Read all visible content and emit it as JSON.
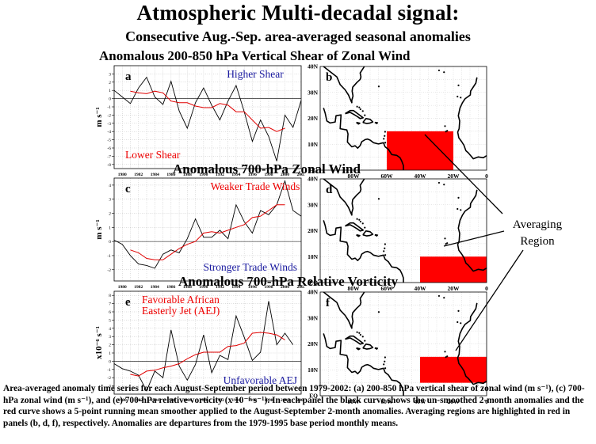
{
  "header": {
    "title": "Atmospheric Multi-decadal signal:",
    "subtitle": "Consecutive Aug.-Sep. area-averaged seasonal anomalies"
  },
  "averaging_label": [
    "Averaging",
    "Region"
  ],
  "caption": "Area-averaged anomaly time series for each August-September period between 1979-2002: (a) 200-850 hPa vertical shear of zonal wind (m s⁻¹), (c) 700-hPa zonal wind (m s⁻¹), and (e) 700-hPa relative vorticity (x 10⁻⁶ s⁻¹). In each panel the black curve shows the un-smoothed 2-month anomalies and the red curve shows a 5-point running mean smoother applied to the August-September 2-month anomalies. Averaging regions are highlighted in red in panels (b, d, f), respectively. Anomalies are departures from the 1979-1995 base period monthly means.",
  "colors": {
    "raw": "#000000",
    "smooth": "#e00000",
    "region": "#ff0000",
    "upper_note": "#ee0000",
    "lower_note": "#1a1aa0"
  },
  "map": {
    "lat_labels": [
      "40N",
      "30N",
      "20N",
      "10N",
      "EQ"
    ],
    "lon_labels": [
      "80W",
      "60W",
      "40W",
      "20W",
      "0"
    ]
  },
  "chart_data": [
    {
      "type": "line",
      "panel": "a",
      "title": "Anomalous 200-850 hPa Vertical Shear of Zonal Wind",
      "ylabel": "m s⁻¹",
      "upper_note": "Higher Shear",
      "upper_note_color": "#1a1aa0",
      "lower_note": "Lower Shear",
      "lower_note_color": "#ee0000",
      "ylim": [
        -8.5,
        4
      ],
      "yticks": [
        -8,
        -7,
        -6,
        -5,
        -4,
        -3,
        -2,
        -1,
        0,
        1,
        2,
        3
      ],
      "x": [
        1979,
        1980,
        1981,
        1982,
        1983,
        1984,
        1985,
        1986,
        1987,
        1988,
        1989,
        1990,
        1991,
        1992,
        1993,
        1994,
        1995,
        1996,
        1997,
        1998,
        1999,
        2000,
        2001,
        2002
      ],
      "xtick_labels": [
        "1980",
        "1982",
        "1984",
        "1986",
        "1988",
        "1990",
        "1992",
        "1994",
        "1996",
        "1998",
        "2000",
        "2002"
      ],
      "series": [
        {
          "values": [
            1.0,
            0.2,
            -0.6,
            1.3,
            2.6,
            0.2,
            -0.7,
            2.1,
            -1.5,
            -3.6,
            -0.5,
            1.3,
            -0.8,
            -2.6,
            -0.3,
            1.6,
            -1.6,
            -5.2,
            -2.6,
            -4.6,
            -7.6,
            -2.0,
            -3.5,
            -0.2
          ]
        },
        {
          "values": [
            null,
            null,
            0.9,
            0.7,
            0.6,
            0.9,
            0.7,
            -0.3,
            -0.5,
            -0.5,
            -0.9,
            -1.1,
            -1.1,
            -0.6,
            -0.8,
            -1.6,
            -1.6,
            -2.6,
            -3.6,
            -3.5,
            -4.0,
            -3.6,
            null,
            null
          ]
        }
      ]
    },
    {
      "type": "line",
      "panel": "c",
      "title": "Anomalous 700-hPa Zonal Wind",
      "ylabel": "m s⁻¹",
      "upper_note": "Weaker Trade Winds",
      "upper_note_color": "#ee0000",
      "lower_note": "Stronger Trade Winds",
      "lower_note_color": "#1a1aa0",
      "ylim": [
        -2.8,
        4.5
      ],
      "yticks": [
        -2,
        -1,
        0,
        1,
        2,
        3,
        4
      ],
      "x": [
        1979,
        1980,
        1981,
        1982,
        1983,
        1984,
        1985,
        1986,
        1987,
        1988,
        1989,
        1990,
        1991,
        1992,
        1993,
        1994,
        1995,
        1996,
        1997,
        1998,
        1999,
        2000,
        2001,
        2002
      ],
      "xtick_labels": [
        "1980",
        "1982",
        "1984",
        "1986",
        "1988",
        "1990",
        "1992",
        "1994",
        "1996",
        "1998",
        "2000",
        "2002"
      ],
      "series": [
        {
          "values": [
            0.1,
            -0.2,
            -1.0,
            -1.6,
            -1.7,
            -1.9,
            -0.9,
            -0.6,
            -0.8,
            0.2,
            1.6,
            0.3,
            0.3,
            0.8,
            0.2,
            2.6,
            1.4,
            0.6,
            2.2,
            1.9,
            2.6,
            4.3,
            2.2,
            1.8
          ]
        },
        {
          "values": [
            null,
            null,
            -0.6,
            -0.8,
            -1.2,
            -1.3,
            -1.3,
            -0.9,
            -0.5,
            -0.2,
            0.0,
            0.6,
            0.7,
            0.6,
            0.8,
            1.0,
            1.2,
            1.7,
            1.8,
            2.2,
            2.6,
            2.6,
            null,
            null
          ]
        }
      ]
    },
    {
      "type": "line",
      "panel": "e",
      "title": "Anomalous 700-hPa Relative Vorticity",
      "ylabel": "x10⁻⁶ s⁻¹",
      "upper_note": "Favorable African\nEasterly Jet (AEJ)",
      "upper_note_color": "#ee0000",
      "lower_note": "Unfavorable AEJ",
      "lower_note_color": "#1a1aa0",
      "ylim": [
        -4,
        8.5
      ],
      "yticks": [
        -3,
        -2,
        -1,
        0,
        1,
        2,
        3,
        4,
        5,
        6,
        7,
        8
      ],
      "x": [
        1979,
        1980,
        1981,
        1982,
        1983,
        1984,
        1985,
        1986,
        1987,
        1988,
        1989,
        1990,
        1991,
        1992,
        1993,
        1994,
        1995,
        1996,
        1997,
        1998,
        1999,
        2000,
        2001,
        2002
      ],
      "xtick_labels": [
        "1980",
        "1982",
        "1984",
        "1986",
        "1988",
        "1990",
        "1992",
        "1994",
        "1996",
        "1998",
        "2000",
        "2002"
      ],
      "series": [
        {
          "values": [
            -0.3,
            -0.9,
            -1.2,
            -1.7,
            -3.6,
            -1.2,
            -2.0,
            3.8,
            -0.6,
            -2.3,
            -0.4,
            3.2,
            -1.4,
            0.7,
            0.2,
            5.5,
            2.9,
            0.1,
            1.1,
            7.3,
            2.0,
            3.4,
            2.0,
            null
          ]
        },
        {
          "values": [
            null,
            null,
            -1.6,
            -1.8,
            -1.2,
            -1.1,
            -0.8,
            -0.6,
            -0.3,
            0.3,
            0.8,
            1.1,
            1.1,
            1.1,
            1.8,
            1.9,
            2.2,
            3.4,
            3.5,
            3.4,
            3.2,
            2.6,
            null,
            null
          ]
        }
      ]
    }
  ]
}
